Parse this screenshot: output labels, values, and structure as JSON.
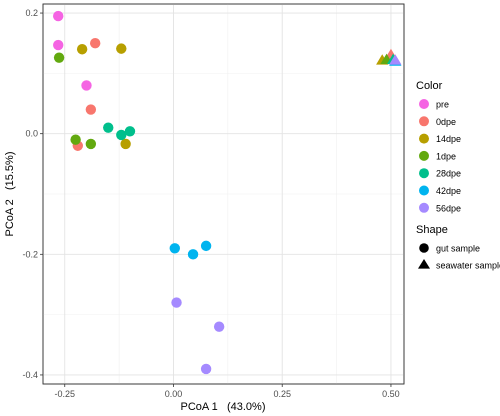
{
  "chart_data": {
    "type": "scatter",
    "xlabel": "PCoA 1   (43.0%)",
    "ylabel": "PCoA 2   (15.5%)",
    "xlim": [
      -0.3,
      0.53
    ],
    "ylim": [
      -0.415,
      0.215
    ],
    "xticks": [
      -0.25,
      0.0,
      0.25,
      0.5
    ],
    "xtick_labels": [
      "-0.25",
      "0.00",
      "0.25",
      "0.50"
    ],
    "yticks": [
      0.2,
      0.0,
      -0.2,
      -0.4
    ],
    "ytick_labels": [
      "0.2",
      "0.0",
      "-0.2",
      "-0.4"
    ],
    "grid": true,
    "legend_placement": "right",
    "legend": {
      "color_title": "Color",
      "shape_title": "Shape",
      "shape_entries": [
        {
          "label": "gut sample",
          "shape": "circle"
        },
        {
          "label": "seawater sample",
          "shape": "triangle"
        }
      ]
    },
    "series": [
      {
        "name": "pre",
        "color": "#F564E3",
        "points": [
          {
            "x": -0.265,
            "y": 0.195,
            "shape": "circle"
          },
          {
            "x": -0.265,
            "y": 0.147,
            "shape": "circle"
          },
          {
            "x": -0.2,
            "y": 0.08,
            "shape": "circle"
          },
          {
            "x": 0.5,
            "y": 0.123,
            "shape": "triangle"
          }
        ]
      },
      {
        "name": "0dpe",
        "color": "#F8766D",
        "points": [
          {
            "x": -0.18,
            "y": 0.15,
            "shape": "circle"
          },
          {
            "x": -0.19,
            "y": 0.04,
            "shape": "circle"
          },
          {
            "x": -0.22,
            "y": -0.02,
            "shape": "circle"
          },
          {
            "x": 0.5,
            "y": 0.13,
            "shape": "triangle"
          }
        ]
      },
      {
        "name": "14dpe",
        "color": "#B79F00",
        "points": [
          {
            "x": -0.21,
            "y": 0.14,
            "shape": "circle"
          },
          {
            "x": -0.12,
            "y": 0.141,
            "shape": "circle"
          },
          {
            "x": -0.11,
            "y": -0.017,
            "shape": "circle"
          },
          {
            "x": 0.48,
            "y": 0.121,
            "shape": "triangle"
          }
        ]
      },
      {
        "name": "1dpe",
        "color": "#62A90F",
        "points": [
          {
            "x": -0.263,
            "y": 0.126,
            "shape": "circle"
          },
          {
            "x": -0.225,
            "y": -0.01,
            "shape": "circle"
          },
          {
            "x": -0.19,
            "y": -0.017,
            "shape": "circle"
          },
          {
            "x": 0.49,
            "y": 0.122,
            "shape": "triangle"
          }
        ]
      },
      {
        "name": "28dpe",
        "color": "#00BF8C",
        "points": [
          {
            "x": -0.15,
            "y": 0.01,
            "shape": "circle"
          },
          {
            "x": -0.12,
            "y": -0.002,
            "shape": "circle"
          },
          {
            "x": -0.1,
            "y": 0.004,
            "shape": "circle"
          },
          {
            "x": 0.505,
            "y": 0.122,
            "shape": "triangle"
          }
        ]
      },
      {
        "name": "42dpe",
        "color": "#00B4EF",
        "points": [
          {
            "x": 0.003,
            "y": -0.19,
            "shape": "circle"
          },
          {
            "x": 0.045,
            "y": -0.2,
            "shape": "circle"
          },
          {
            "x": 0.075,
            "y": -0.186,
            "shape": "circle"
          },
          {
            "x": 0.51,
            "y": 0.119,
            "shape": "triangle"
          }
        ]
      },
      {
        "name": "56dpe",
        "color": "#A58AFF",
        "points": [
          {
            "x": 0.007,
            "y": -0.28,
            "shape": "circle"
          },
          {
            "x": 0.105,
            "y": -0.32,
            "shape": "circle"
          },
          {
            "x": 0.075,
            "y": -0.39,
            "shape": "circle"
          },
          {
            "x": 0.51,
            "y": 0.121,
            "shape": "triangle"
          }
        ]
      }
    ]
  }
}
